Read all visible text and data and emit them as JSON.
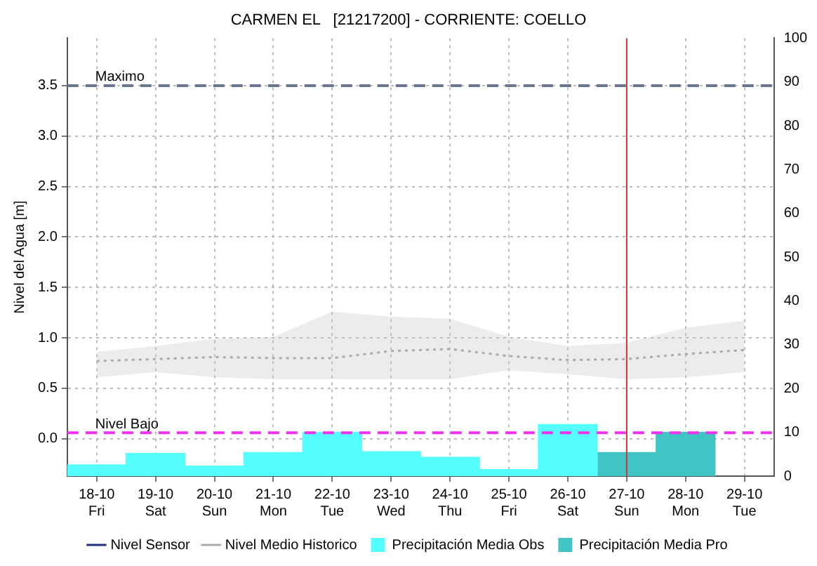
{
  "chart_data": {
    "type": "bar",
    "title": "CARMEN EL   [21217200] - CORRIENTE: COELLO",
    "ylabel": "Nivel del Agua [m]",
    "categories": [
      "18-10\nFri",
      "19-10\nSat",
      "20-10\nSun",
      "21-10\nMon",
      "22-10\nTue",
      "23-10\nWed",
      "24-10\nThu",
      "25-10\nFri",
      "26-10\nSat",
      "27-10\nSun",
      "28-10\nMon",
      "29-10\nTue"
    ],
    "series": [
      {
        "name": "Nivel Sensor",
        "type": "line",
        "color": "#1f2f7f",
        "line_style": "solid",
        "values": [
          null,
          null,
          null,
          null,
          null,
          null,
          null,
          null,
          null,
          null,
          null,
          null
        ]
      },
      {
        "name": "Nivel Medio Historico",
        "type": "line",
        "color": "#aaaaaa",
        "line_style": "dotted",
        "values": [
          0.77,
          0.79,
          0.81,
          0.8,
          0.8,
          0.87,
          0.89,
          0.82,
          0.78,
          0.79,
          0.84,
          0.88
        ],
        "lower": [
          0.61,
          0.66,
          0.61,
          0.59,
          0.59,
          0.59,
          0.59,
          0.68,
          0.64,
          0.59,
          0.61,
          0.66
        ],
        "upper": [
          0.86,
          0.92,
          0.99,
          1.01,
          1.26,
          1.21,
          1.19,
          1.01,
          0.92,
          0.95,
          1.1,
          1.17
        ]
      },
      {
        "name": "Precipitación Media Obs",
        "axis": "y2",
        "color": "#55ffff",
        "values": [
          2.6,
          5.2,
          2.3,
          5.4,
          10,
          5.6,
          4.3,
          1.5,
          11.8,
          null,
          null,
          null
        ]
      },
      {
        "name": "Precipitación Media Pro",
        "axis": "y2",
        "color": "#40c4c4",
        "values": [
          null,
          null,
          null,
          null,
          null,
          null,
          null,
          null,
          null,
          5.4,
          10,
          null
        ]
      }
    ],
    "ylim": [
      -0.37,
      3.97
    ],
    "yticks": [
      {
        "value": 0,
        "label": "0.0"
      },
      {
        "value": 0.5,
        "label": "0.5"
      },
      {
        "value": 1,
        "label": "1.0"
      },
      {
        "value": 1.5,
        "label": "1.5"
      },
      {
        "value": 2,
        "label": "2.0"
      },
      {
        "value": 2.5,
        "label": "2.5"
      },
      {
        "value": 3,
        "label": "3.0"
      },
      {
        "value": 3.5,
        "label": "3.5"
      }
    ],
    "y2lim": [
      0,
      100
    ],
    "y2ticks": [
      0,
      10,
      20,
      30,
      40,
      50,
      60,
      70,
      80,
      90,
      100
    ],
    "ref_lines": [
      {
        "axis": "y",
        "value": 3.5,
        "label": "Maximo",
        "color": "#6a7590",
        "line_style": "dashed"
      },
      {
        "axis": "y",
        "value": 0.06,
        "label": "Nivel Bajo",
        "color": "#ee33ee",
        "line_style": "dashed"
      },
      {
        "axis": "x",
        "value": "27-10\nSun",
        "color": "#cc3333",
        "line_style": "solid"
      }
    ],
    "grid": true,
    "legend": "bottom"
  }
}
